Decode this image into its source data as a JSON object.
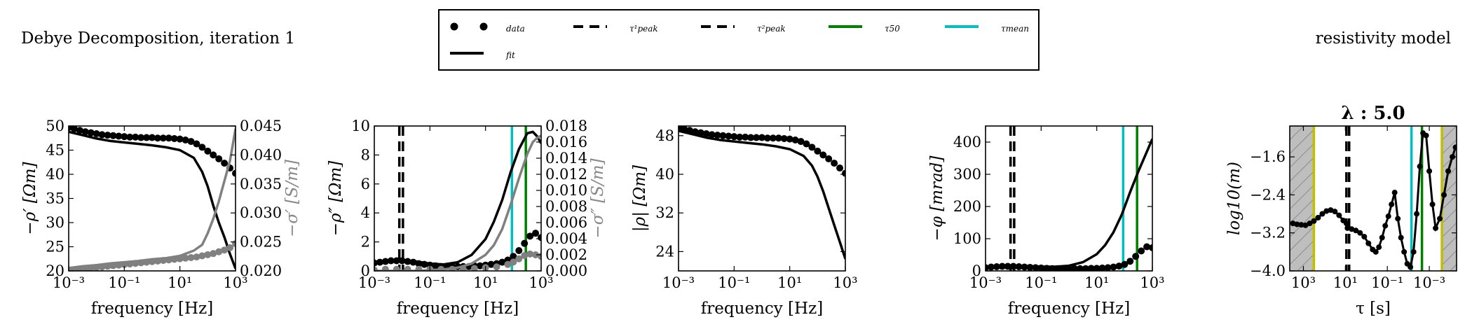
{
  "figure": {
    "left_title": "Debye Decomposition, iteration 1",
    "right_title": "resistivity model"
  },
  "legend": {
    "entries": [
      {
        "label": "data",
        "style": "dots",
        "color": "#000000"
      },
      {
        "label": "τ¹peak",
        "style": "dashed",
        "color": "#000000"
      },
      {
        "label": "τ²peak",
        "style": "dashed",
        "color": "#000000"
      },
      {
        "label": "τ50",
        "style": "solid",
        "color": "#008000"
      },
      {
        "label": "τmean",
        "style": "solid",
        "color": "#00bfbf"
      },
      {
        "label": "fit",
        "style": "solid",
        "color": "#000000"
      }
    ]
  },
  "colors": {
    "data": "#000000",
    "fit": "#000000",
    "conductivity": "#808080",
    "tau50": "#008000",
    "taumean": "#00bfbf",
    "bounds": "#bfbf00",
    "hatch_fill": "#bebebe"
  },
  "chart_data": [
    {
      "type": "line",
      "id": "rho_real",
      "xlabel": "frequency [Hz]",
      "ylabel": "−ρ′ [Ωm]",
      "y2label": "−σ′ [S/m]",
      "xscale": "log",
      "xlim": [
        -3,
        3
      ],
      "xticks": [
        "10⁻³",
        "10⁻¹",
        "10¹",
        "10³"
      ],
      "ylim": [
        20,
        50
      ],
      "yticks": [
        "20",
        "25",
        "30",
        "35",
        "40",
        "45",
        "50"
      ],
      "y2lim": [
        0.02,
        0.045
      ],
      "y2ticks": [
        "0.020",
        "0.025",
        "0.030",
        "0.035",
        "0.040",
        "0.045"
      ],
      "series": [
        {
          "role": "data",
          "axis": "left",
          "x": [
            -3,
            -2.8,
            -2.6,
            -2.4,
            -2.2,
            -2,
            -1.8,
            -1.6,
            -1.4,
            -1.2,
            -1,
            -0.8,
            -0.6,
            -0.4,
            -0.2,
            0,
            0.2,
            0.4,
            0.6,
            0.8,
            1,
            1.2,
            1.4,
            1.6,
            1.8,
            2,
            2.2,
            2.4,
            2.6,
            2.8,
            3
          ],
          "y": [
            49.7,
            49.4,
            49.1,
            48.8,
            48.6,
            48.4,
            48.2,
            48.1,
            48,
            47.9,
            47.8,
            47.7,
            47.7,
            47.6,
            47.6,
            47.6,
            47.5,
            47.5,
            47.5,
            47.4,
            47.3,
            47.1,
            46.8,
            46.3,
            45.6,
            44.8,
            44,
            43.2,
            42.3,
            41.3,
            40.2
          ]
        },
        {
          "role": "fit",
          "axis": "left",
          "x": [
            -3,
            -2.5,
            -2,
            -1.5,
            -1,
            -0.5,
            0,
            0.5,
            1,
            1.5,
            1.8,
            2,
            2.2,
            2.4,
            2.6,
            2.8,
            3
          ],
          "y": [
            48.8,
            48.1,
            47.4,
            46.9,
            46.6,
            46.3,
            46,
            45.6,
            45,
            43.4,
            40.5,
            37.5,
            33.5,
            30,
            27,
            23.5,
            20.5
          ]
        },
        {
          "role": "conductivity_data",
          "axis": "right",
          "x": [
            -3,
            -2.8,
            -2.6,
            -2.4,
            -2.2,
            -2,
            -1.8,
            -1.6,
            -1.4,
            -1.2,
            -1,
            -0.8,
            -0.6,
            -0.4,
            -0.2,
            0,
            0.2,
            0.4,
            0.6,
            0.8,
            1,
            1.2,
            1.4,
            1.6,
            1.8,
            2,
            2.2,
            2.4,
            2.6,
            2.8,
            3
          ],
          "y": [
            0.0201,
            0.0202,
            0.0203,
            0.0204,
            0.0205,
            0.0206,
            0.0207,
            0.0208,
            0.0209,
            0.021,
            0.0211,
            0.0212,
            0.0213,
            0.0214,
            0.0215,
            0.0216,
            0.0217,
            0.0218,
            0.0219,
            0.022,
            0.0221,
            0.0222,
            0.0223,
            0.0224,
            0.0226,
            0.0228,
            0.023,
            0.0233,
            0.0236,
            0.024,
            0.0247
          ]
        },
        {
          "role": "conductivity_fit",
          "axis": "right",
          "x": [
            -3,
            -2.5,
            -2,
            -1.5,
            -1,
            -0.5,
            0,
            0.5,
            1,
            1.5,
            1.8,
            2,
            2.2,
            2.4,
            2.6,
            2.8,
            3
          ],
          "y": [
            0.0205,
            0.0208,
            0.021,
            0.0213,
            0.0215,
            0.0217,
            0.022,
            0.0222,
            0.0226,
            0.0235,
            0.0245,
            0.0265,
            0.029,
            0.032,
            0.0355,
            0.039,
            0.0445
          ]
        }
      ],
      "vlines": []
    },
    {
      "type": "line",
      "id": "rho_imag",
      "xlabel": "frequency [Hz]",
      "ylabel": "−ρ″ [Ωm]",
      "y2label": "−σ″ [S/m]",
      "xscale": "log",
      "xlim": [
        -3,
        3
      ],
      "xticks": [
        "10⁻³",
        "10⁻¹",
        "10¹",
        "10³"
      ],
      "ylim": [
        0,
        10
      ],
      "yticks": [
        "0",
        "2",
        "4",
        "6",
        "8",
        "10"
      ],
      "y2lim": [
        0,
        0.018
      ],
      "y2ticks": [
        "0.000",
        "0.002",
        "0.004",
        "0.006",
        "0.008",
        "0.010",
        "0.012",
        "0.014",
        "0.016",
        "0.018"
      ],
      "series": [
        {
          "role": "data",
          "axis": "left",
          "x": [
            -3,
            -2.8,
            -2.6,
            -2.4,
            -2.2,
            -2,
            -1.8,
            -1.6,
            -1.4,
            -1.2,
            -1,
            -0.8,
            -0.6,
            -0.4,
            -0.2,
            0,
            0.2,
            0.4,
            0.6,
            0.8,
            1,
            1.2,
            1.4,
            1.6,
            1.8,
            2,
            2.2,
            2.4,
            2.6,
            2.8,
            3
          ],
          "y": [
            0.55,
            0.6,
            0.65,
            0.7,
            0.7,
            0.7,
            0.65,
            0.6,
            0.5,
            0.45,
            0.4,
            0.35,
            0.3,
            0.3,
            0.3,
            0.3,
            0.3,
            0.3,
            0.35,
            0.35,
            0.4,
            0.45,
            0.5,
            0.6,
            0.75,
            1,
            1.4,
            1.9,
            2.4,
            2.6,
            2.3
          ]
        },
        {
          "role": "fit",
          "axis": "left",
          "x": [
            -3,
            -2.5,
            -2,
            -1.5,
            -1,
            -0.5,
            0,
            0.5,
            1,
            1.3,
            1.6,
            1.9,
            2.2,
            2.5,
            2.7,
            2.85,
            3
          ],
          "y": [
            0.6,
            0.7,
            0.75,
            0.65,
            0.5,
            0.45,
            0.6,
            1.1,
            2.2,
            3.4,
            4.9,
            6.8,
            8.4,
            9.5,
            9.6,
            9.3,
            8.8
          ]
        },
        {
          "role": "conductivity_data",
          "axis": "right",
          "x": [
            -3,
            -2.6,
            -2.2,
            -1.8,
            -1.4,
            -1,
            -0.6,
            -0.2,
            0.2,
            0.6,
            1,
            1.4,
            1.8,
            2,
            2.2,
            2.4,
            2.6,
            2.8,
            3
          ],
          "y": [
            0.0001,
            0.0002,
            0.0002,
            0.0002,
            0.0002,
            0.0002,
            0.0002,
            0.0002,
            0.0002,
            0.0003,
            0.0004,
            0.0005,
            0.0008,
            0.0011,
            0.0015,
            0.0019,
            0.0021,
            0.002,
            0.0018
          ]
        },
        {
          "role": "conductivity_fit",
          "axis": "right",
          "x": [
            -3,
            -2.5,
            -2,
            -1.5,
            -1,
            -0.5,
            0,
            0.5,
            1,
            1.3,
            1.6,
            1.9,
            2.2,
            2.5,
            2.7,
            2.85,
            3
          ],
          "y": [
            0,
            0,
            0,
            0,
            0.0001,
            0.0002,
            0.0004,
            0.0009,
            0.002,
            0.0032,
            0.0052,
            0.0082,
            0.0115,
            0.0145,
            0.016,
            0.0165,
            0.0168
          ]
        }
      ],
      "vlines": [
        {
          "role": "tau_peak_1",
          "x": -2.1,
          "style": "dashed",
          "color": "#000000"
        },
        {
          "role": "tau_peak_2",
          "x": -1.97,
          "style": "dashed",
          "color": "#000000"
        },
        {
          "role": "tau_mean",
          "x": 1.95,
          "style": "solid",
          "color": "#00bfbf"
        },
        {
          "role": "tau_50",
          "x": 2.45,
          "style": "solid",
          "color": "#008000"
        }
      ]
    },
    {
      "type": "line",
      "id": "rho_abs",
      "xlabel": "frequency [Hz]",
      "ylabel": "|ρ| [Ωm]",
      "xscale": "log",
      "xlim": [
        -3,
        3
      ],
      "xticks": [
        "10⁻³",
        "10⁻¹",
        "10¹",
        "10³"
      ],
      "ylim": [
        20,
        50
      ],
      "yticks": [
        "24",
        "32",
        "40",
        "48"
      ],
      "ytick_values": [
        24,
        32,
        40,
        48
      ],
      "series": [
        {
          "role": "data",
          "axis": "left",
          "x": [
            -3,
            -2.8,
            -2.6,
            -2.4,
            -2.2,
            -2,
            -1.8,
            -1.6,
            -1.4,
            -1.2,
            -1,
            -0.8,
            -0.6,
            -0.4,
            -0.2,
            0,
            0.2,
            0.4,
            0.6,
            0.8,
            1,
            1.2,
            1.4,
            1.6,
            1.8,
            2,
            2.2,
            2.4,
            2.6,
            2.8,
            3
          ],
          "y": [
            49.7,
            49.4,
            49.1,
            48.8,
            48.6,
            48.4,
            48.2,
            48.1,
            48,
            47.9,
            47.8,
            47.7,
            47.7,
            47.6,
            47.6,
            47.6,
            47.5,
            47.5,
            47.5,
            47.4,
            47.3,
            47.1,
            46.8,
            46.3,
            45.6,
            44.8,
            44,
            43.2,
            42.3,
            41.3,
            40.2
          ]
        },
        {
          "role": "fit",
          "axis": "left",
          "x": [
            -3,
            -2.5,
            -2,
            -1.5,
            -1,
            -0.5,
            0,
            0.5,
            1,
            1.5,
            1.8,
            2,
            2.2,
            2.4,
            2.6,
            2.8,
            3
          ],
          "y": [
            49,
            48.3,
            47.6,
            47.1,
            46.8,
            46.5,
            46.2,
            45.8,
            45.2,
            43.8,
            41.8,
            39.5,
            36.5,
            33,
            29.5,
            26,
            22.5
          ]
        }
      ],
      "vlines": []
    },
    {
      "type": "line",
      "id": "phase",
      "xlabel": "frequency [Hz]",
      "ylabel": "−φ [mrad]",
      "xscale": "log",
      "xlim": [
        -3,
        3
      ],
      "xticks": [
        "10⁻³",
        "10⁻¹",
        "10¹",
        "10³"
      ],
      "ylim": [
        0,
        450
      ],
      "yticks": [
        "0",
        "100",
        "200",
        "300",
        "400"
      ],
      "series": [
        {
          "role": "data",
          "axis": "left",
          "x": [
            -3,
            -2.8,
            -2.6,
            -2.4,
            -2.2,
            -2,
            -1.8,
            -1.6,
            -1.4,
            -1.2,
            -1,
            -0.8,
            -0.6,
            -0.4,
            -0.2,
            0,
            0.2,
            0.4,
            0.6,
            0.8,
            1,
            1.2,
            1.4,
            1.6,
            1.8,
            2,
            2.2,
            2.4,
            2.6,
            2.8,
            3
          ],
          "y": [
            10,
            12,
            13,
            14,
            14,
            14,
            13,
            12,
            11,
            10,
            9,
            8,
            7,
            7,
            7,
            7,
            7,
            7,
            7,
            8,
            8,
            9,
            10,
            12,
            15,
            20,
            30,
            45,
            62,
            75,
            72
          ]
        },
        {
          "role": "fit",
          "axis": "left",
          "x": [
            -3,
            -2.5,
            -2,
            -1.5,
            -1,
            -0.5,
            0,
            0.5,
            1,
            1.3,
            1.6,
            1.9,
            2.2,
            2.5,
            2.8,
            3
          ],
          "y": [
            13,
            15,
            16,
            15,
            13,
            13,
            16,
            27,
            52,
            80,
            120,
            175,
            245,
            310,
            370,
            410
          ]
        }
      ],
      "vlines": [
        {
          "role": "tau_peak_1",
          "x": -2.1,
          "style": "dashed",
          "color": "#000000"
        },
        {
          "role": "tau_peak_2",
          "x": -1.97,
          "style": "dashed",
          "color": "#000000"
        },
        {
          "role": "tau_mean",
          "x": 1.95,
          "style": "solid",
          "color": "#00bfbf"
        },
        {
          "role": "tau_50",
          "x": 2.45,
          "style": "solid",
          "color": "#008000"
        }
      ]
    },
    {
      "type": "line",
      "id": "model",
      "title": "λ : 5.0",
      "xlabel": "τ [s]",
      "ylabel": "log10(m)",
      "xscale": "log",
      "xlim": [
        3.65,
        -4.3
      ],
      "xticks": [
        "10³",
        "10¹",
        "10⁻¹",
        "10⁻³"
      ],
      "xtick_values": [
        3,
        1,
        -1,
        -3
      ],
      "ylim": [
        -4.0,
        -0.95
      ],
      "yticks": [
        "−4.0",
        "−3.2",
        "−2.4",
        "−1.6"
      ],
      "ytick_values": [
        -4.0,
        -3.2,
        -2.4,
        -1.6
      ],
      "shaded_regions": [
        [
          3.65,
          2.5
        ],
        [
          -3.6,
          -4.3
        ]
      ],
      "series": [
        {
          "role": "model",
          "axis": "left",
          "x": [
            3.5,
            3.3,
            3.1,
            2.9,
            2.7,
            2.5,
            2.3,
            2.1,
            1.9,
            1.7,
            1.5,
            1.3,
            1.1,
            0.95,
            0.9,
            0.7,
            0.5,
            0.3,
            0.1,
            -0.1,
            -0.3,
            -0.45,
            -0.6,
            -0.75,
            -0.9,
            -1.05,
            -1.2,
            -1.35,
            -1.5,
            -1.65,
            -1.8,
            -1.95,
            -2.1,
            -2.25,
            -2.4,
            -2.55,
            -2.7,
            -2.85,
            -3,
            -3.15,
            -3.3,
            -3.5,
            -3.7,
            -3.9,
            -4.1,
            -4.25
          ],
          "y": [
            -3.0,
            -3.02,
            -3.03,
            -3.04,
            -3.0,
            -2.95,
            -2.88,
            -2.8,
            -2.74,
            -2.72,
            -2.75,
            -2.83,
            -2.94,
            -3.0,
            -3.1,
            -3.12,
            -3.15,
            -3.2,
            -3.28,
            -3.42,
            -3.55,
            -3.6,
            -3.5,
            -3.3,
            -3.05,
            -2.85,
            -2.6,
            -2.35,
            -2.9,
            -3.3,
            -3.6,
            -3.85,
            -3.92,
            -3.6,
            -2.8,
            -1.8,
            -1.1,
            -1.15,
            -1.9,
            -2.6,
            -3.1,
            -2.9,
            -2.4,
            -1.9,
            -1.6,
            -1.4
          ]
        }
      ],
      "vlines": [
        {
          "role": "lower_bound",
          "x": 2.5,
          "style": "solid",
          "color": "#bfbf00"
        },
        {
          "role": "tau_peak_1",
          "x": 0.95,
          "style": "dashed",
          "color": "#000000"
        },
        {
          "role": "tau_peak_2",
          "x": 0.82,
          "style": "dashed",
          "color": "#000000"
        },
        {
          "role": "tau_mean",
          "x": -2.15,
          "style": "solid",
          "color": "#00bfbf"
        },
        {
          "role": "tau_50",
          "x": -2.65,
          "style": "solid",
          "color": "#008000"
        },
        {
          "role": "upper_bound",
          "x": -3.6,
          "style": "solid",
          "color": "#bfbf00"
        }
      ]
    }
  ]
}
